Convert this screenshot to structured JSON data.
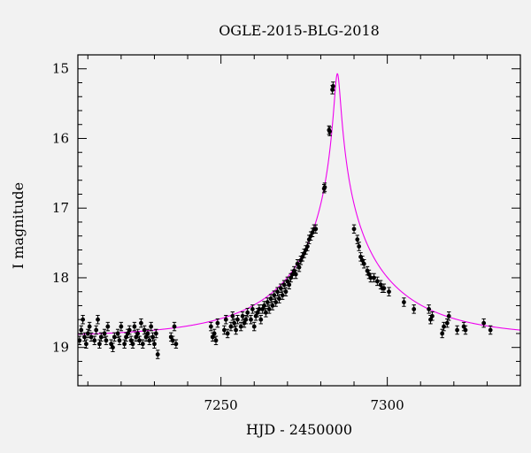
{
  "chart_data": {
    "type": "scatter",
    "title": "OGLE-2015-BLG-2018",
    "xlabel": "HJD - 2450000",
    "ylabel": "I magnitude",
    "xlim": [
      7207,
      7340
    ],
    "ylim": [
      19.55,
      14.8
    ],
    "y_inverted": true,
    "x_ticks": [
      7250,
      7300
    ],
    "y_ticks": [
      15,
      16,
      17,
      18,
      19
    ],
    "grid": false,
    "colors": {
      "background": "#f2f2f2",
      "points": "#000000",
      "model": "#ee00ee"
    },
    "series": [
      {
        "type": "scatter",
        "marker": "filled-circle-with-errorbars",
        "x": [
          7207.5,
          7208,
          7208.5,
          7209,
          7209.5,
          7210,
          7210.5,
          7211,
          7212,
          7212.5,
          7213,
          7213.5,
          7214,
          7215,
          7215.5,
          7216,
          7217,
          7217.5,
          7218,
          7219,
          7219.5,
          7220,
          7221,
          7221.5,
          7222,
          7222.5,
          7223,
          7223.5,
          7224,
          7224.5,
          7225,
          7225.5,
          7226,
          7226.5,
          7227,
          7227.5,
          7228,
          7228.5,
          7229,
          7229.5,
          7230,
          7230.5,
          7231,
          7235,
          7235.5,
          7236,
          7236.5,
          7247,
          7247.5,
          7248,
          7248.5,
          7249,
          7251,
          7251.5,
          7252,
          7253,
          7253.5,
          7254,
          7254.5,
          7255,
          7256,
          7256.5,
          7257,
          7257.5,
          7258,
          7259,
          7259.5,
          7260,
          7260.5,
          7261,
          7261.5,
          7262,
          7262.5,
          7263,
          7263.5,
          7264,
          7264.5,
          7265,
          7265.5,
          7266,
          7266.5,
          7267,
          7267.5,
          7268,
          7268.5,
          7269,
          7269.5,
          7270,
          7270.5,
          7271,
          7271.5,
          7272,
          7272.5,
          7273,
          7273.5,
          7274,
          7274.5,
          7275,
          7275.5,
          7276,
          7276.5,
          7277,
          7277.5,
          7278,
          7278.5,
          7281,
          7281.2,
          7282.5,
          7282.7,
          7283.5,
          7283.7,
          7290,
          7291,
          7291.5,
          7292,
          7292.5,
          7293,
          7294,
          7294.5,
          7295,
          7296,
          7297,
          7298,
          7298.5,
          7299,
          7300.5,
          7305,
          7308,
          7312.5,
          7313,
          7313.5,
          7316.5,
          7317,
          7318,
          7318.5,
          7321,
          7323,
          7323.5,
          7329,
          7331
        ],
        "y": [
          18.9,
          18.75,
          18.6,
          18.85,
          18.95,
          18.8,
          18.7,
          18.85,
          18.9,
          18.75,
          18.6,
          18.95,
          18.85,
          18.8,
          18.9,
          18.7,
          18.95,
          19.0,
          18.85,
          18.8,
          18.9,
          18.7,
          18.95,
          18.85,
          18.8,
          18.75,
          18.9,
          18.95,
          18.7,
          18.85,
          18.8,
          18.9,
          18.65,
          18.95,
          18.75,
          18.85,
          18.8,
          18.9,
          18.7,
          18.85,
          18.95,
          18.8,
          19.1,
          18.85,
          18.9,
          18.7,
          18.95,
          18.7,
          18.85,
          18.8,
          18.9,
          18.65,
          18.75,
          18.6,
          18.8,
          18.7,
          18.55,
          18.65,
          18.75,
          18.6,
          18.7,
          18.55,
          18.65,
          18.6,
          18.5,
          18.6,
          18.45,
          18.7,
          18.55,
          18.5,
          18.45,
          18.6,
          18.45,
          18.4,
          18.5,
          18.35,
          18.45,
          18.3,
          18.4,
          18.25,
          18.35,
          18.2,
          18.3,
          18.15,
          18.25,
          18.1,
          18.2,
          18.05,
          18.1,
          18.0,
          17.95,
          17.9,
          17.95,
          17.8,
          17.85,
          17.75,
          17.7,
          17.65,
          17.6,
          17.55,
          17.45,
          17.4,
          17.35,
          17.3,
          17.3,
          16.72,
          16.7,
          15.88,
          15.9,
          15.3,
          15.25,
          17.3,
          17.45,
          17.55,
          17.7,
          17.75,
          17.8,
          17.9,
          17.95,
          18.0,
          18.0,
          18.05,
          18.1,
          18.15,
          18.15,
          18.2,
          18.35,
          18.45,
          18.45,
          18.6,
          18.55,
          18.8,
          18.7,
          18.65,
          18.55,
          18.75,
          18.7,
          18.75,
          18.65,
          18.75
        ],
        "yerr": 0.06
      },
      {
        "type": "line",
        "model": "microlensing-fit",
        "t0": 7285.0,
        "u0": 0.025,
        "tE": 35,
        "I_base": 18.85,
        "peak_mag": 15.07,
        "x_range": [
          7207,
          7340
        ]
      }
    ]
  }
}
